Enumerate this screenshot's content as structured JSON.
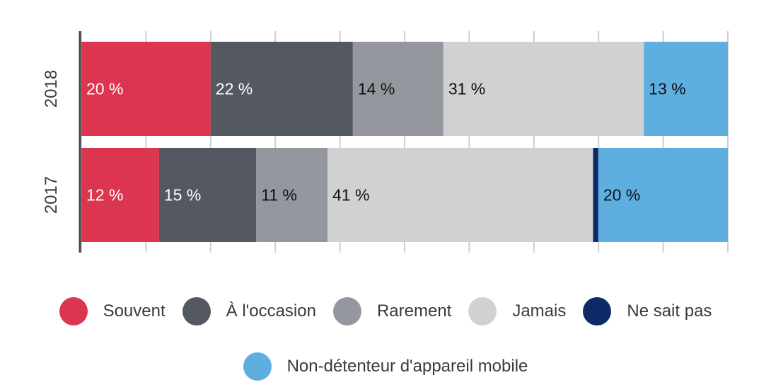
{
  "chart_data": {
    "type": "bar",
    "orientation": "horizontal",
    "stacked": true,
    "normalized_percent": true,
    "categories": [
      "2018",
      "2017"
    ],
    "xlim": [
      0,
      100
    ],
    "grid": true,
    "legend_position": "bottom",
    "series": [
      {
        "name": "Souvent",
        "color": "#dc3550",
        "values": [
          20,
          12
        ],
        "labels": [
          "20 %",
          "12 %"
        ],
        "label_color": "#ffffff"
      },
      {
        "name": "À l'occasion",
        "color": "#545861",
        "values": [
          22,
          15
        ],
        "labels": [
          "22 %",
          "15 %"
        ],
        "label_color": "#ffffff"
      },
      {
        "name": "Rarement",
        "color": "#94979e",
        "values": [
          14,
          11
        ],
        "labels": [
          "14 %",
          "11 %"
        ],
        "label_color": "#111111"
      },
      {
        "name": "Jamais",
        "color": "#d0d1d3",
        "values": [
          31,
          41
        ],
        "labels": [
          "31 %",
          "41 %"
        ],
        "label_color": "#111111"
      },
      {
        "name": "Ne sait pas",
        "color": "#0d2a66",
        "values": [
          0,
          0.8
        ],
        "labels": [
          "",
          ""
        ],
        "label_color": "#ffffff"
      },
      {
        "name": "Non-détenteur d'appareil mobile",
        "color": "#5faee0",
        "values": [
          13,
          20
        ],
        "labels": [
          "13 %",
          "20 %"
        ],
        "label_color": "#111111"
      }
    ]
  },
  "legend": {
    "row1": [
      {
        "label": "Souvent",
        "color": "#dc3550"
      },
      {
        "label": "À l'occasion",
        "color": "#545861"
      },
      {
        "label": "Rarement",
        "color": "#94979e"
      },
      {
        "label": "Jamais",
        "color": "#d0d1d3"
      },
      {
        "label": "Ne sait pas",
        "color": "#0d2a66"
      }
    ],
    "row2": [
      {
        "label": "Non-détenteur d'appareil mobile",
        "color": "#5faee0"
      }
    ]
  }
}
